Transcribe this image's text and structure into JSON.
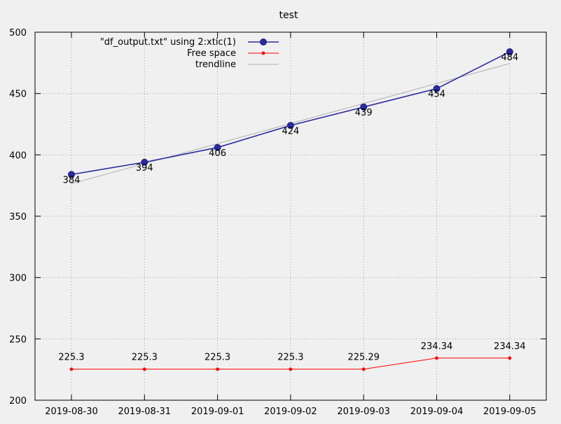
{
  "chart_data": {
    "type": "line",
    "title": "test",
    "xlabel": "",
    "ylabel": "",
    "categories": [
      "2019-08-30",
      "2019-08-31",
      "2019-09-01",
      "2019-09-02",
      "2019-09-03",
      "2019-09-04",
      "2019-09-05"
    ],
    "ylim": [
      200,
      500
    ],
    "yticks": [
      "200",
      "250",
      "300",
      "350",
      "400",
      "450",
      "500"
    ],
    "grid": true,
    "legend_position": "top-center",
    "series": [
      {
        "name": "\"df_output.txt\" using 2:xtic(1)",
        "values": [
          384,
          394,
          406,
          424,
          439,
          454,
          484
        ],
        "labels": [
          "384",
          "394",
          "406",
          "424",
          "439",
          "454",
          "484"
        ],
        "color": "#2b2b9e",
        "marker": "circle"
      },
      {
        "name": "Free space",
        "values": [
          225.3,
          225.3,
          225.3,
          225.3,
          225.29,
          234.34,
          234.34
        ],
        "labels": [
          "225.3",
          "225.3",
          "225.3",
          "225.3",
          "225.29",
          "234.34",
          "234.34"
        ],
        "color": "#ff0000",
        "marker": "dot"
      },
      {
        "name": "trendline",
        "start": [
          0,
          376.5
        ],
        "end": [
          6,
          474.5
        ],
        "color": "#b0b0b0",
        "marker": "none"
      }
    ]
  }
}
